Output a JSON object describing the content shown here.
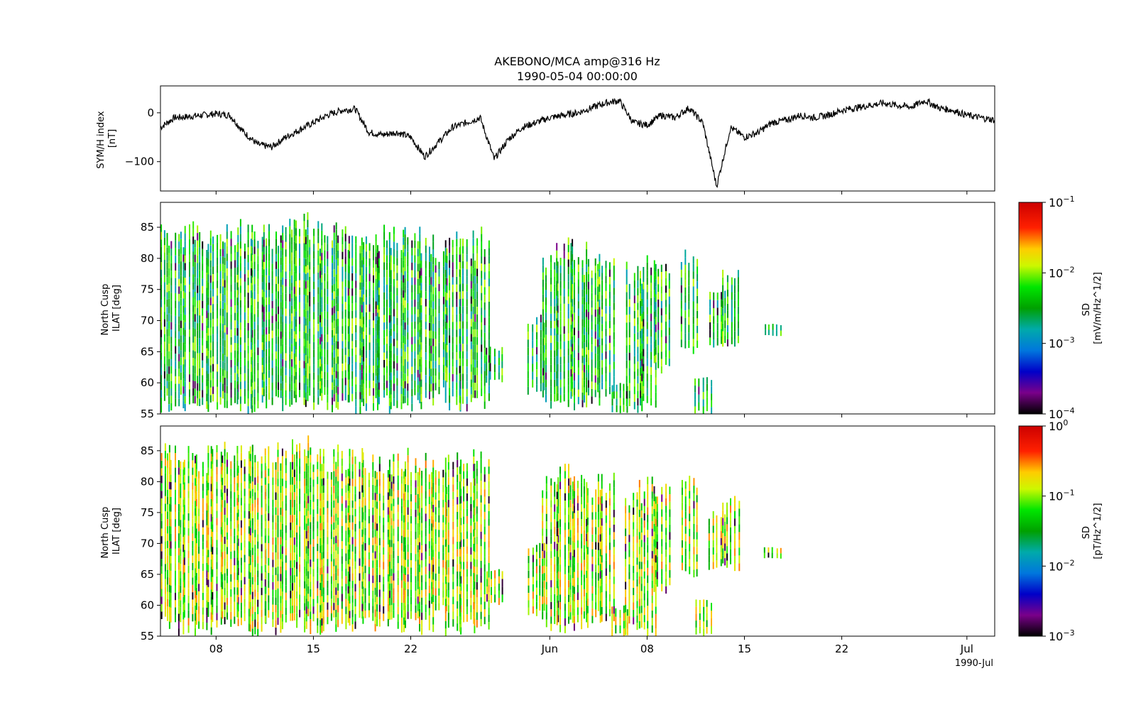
{
  "figure": {
    "title_line1": "AKEBONO/MCA amp@316 Hz",
    "title_line2": "1990-05-04 00:00:00",
    "x_corner_label": "1990-Jul",
    "x_ticks": [
      {
        "date": "1990-05-08",
        "label": "08"
      },
      {
        "date": "1990-05-15",
        "label": "15"
      },
      {
        "date": "1990-05-22",
        "label": "22"
      },
      {
        "date": "1990-06-01",
        "label": "Jun"
      },
      {
        "date": "1990-06-08",
        "label": "08"
      },
      {
        "date": "1990-06-15",
        "label": "15"
      },
      {
        "date": "1990-06-22",
        "label": "22"
      },
      {
        "date": "1990-07-01",
        "label": "Jul"
      }
    ]
  },
  "chart_data": [
    {
      "type": "line",
      "ylabel_line1": "SYM/H index",
      "ylabel_line2": "[nT]",
      "xlim": [
        "1990-05-04",
        "1990-07-03"
      ],
      "ylim": [
        -160,
        55
      ],
      "y_ticks": [
        0,
        -100
      ],
      "series": [
        {
          "color": "#000000",
          "x": [
            "1990-05-04",
            "1990-05-05",
            "1990-05-06",
            "1990-05-07",
            "1990-05-08",
            "1990-05-09",
            "1990-05-10",
            "1990-05-11",
            "1990-05-12",
            "1990-05-13",
            "1990-05-14",
            "1990-05-15",
            "1990-05-16",
            "1990-05-17",
            "1990-05-18",
            "1990-05-19",
            "1990-05-20",
            "1990-05-21",
            "1990-05-22",
            "1990-05-23",
            "1990-05-24",
            "1990-05-25",
            "1990-05-26",
            "1990-05-27",
            "1990-05-28",
            "1990-05-29",
            "1990-05-30",
            "1990-05-31",
            "1990-06-01",
            "1990-06-02",
            "1990-06-03",
            "1990-06-04",
            "1990-06-05",
            "1990-06-06",
            "1990-06-07",
            "1990-06-08",
            "1990-06-09",
            "1990-06-10",
            "1990-06-11",
            "1990-06-12",
            "1990-06-13",
            "1990-06-14",
            "1990-06-15",
            "1990-06-16",
            "1990-06-17",
            "1990-06-18",
            "1990-06-19",
            "1990-06-20",
            "1990-06-21",
            "1990-06-22",
            "1990-06-23",
            "1990-06-24",
            "1990-06-25",
            "1990-06-26",
            "1990-06-27",
            "1990-06-28",
            "1990-06-29",
            "1990-06-30",
            "1990-07-01",
            "1990-07-02",
            "1990-07-03"
          ],
          "y": [
            -30,
            -10,
            -8,
            -5,
            -2,
            -5,
            -40,
            -65,
            -70,
            -50,
            -35,
            -20,
            -5,
            5,
            8,
            -40,
            -45,
            -40,
            -50,
            -90,
            -60,
            -30,
            -20,
            -10,
            -95,
            -55,
            -30,
            -20,
            -10,
            -5,
            0,
            10,
            20,
            25,
            -20,
            -25,
            -5,
            -10,
            10,
            -20,
            -150,
            -30,
            -50,
            -40,
            -20,
            -15,
            -5,
            -10,
            -5,
            5,
            10,
            15,
            20,
            15,
            12,
            25,
            10,
            5,
            -5,
            -10,
            -15
          ]
        }
      ]
    },
    {
      "type": "heatmap",
      "ylabel_line1": "North Cusp",
      "ylabel_line2": "ILAT [deg]",
      "xlim": [
        "1990-05-04",
        "1990-07-03"
      ],
      "ylim": [
        55,
        89
      ],
      "y_ticks": [
        55,
        60,
        65,
        70,
        75,
        80,
        85
      ],
      "colorbar": {
        "label_line1": "SD",
        "label_line2": "[mV/m/Hz^1/2]",
        "scale": "log",
        "range": [
          0.0001,
          0.1
        ],
        "tick_exponents": [
          -1,
          -2,
          -3,
          -4
        ],
        "colormap": "nipy_spectral"
      },
      "dominant_color_log10": -2.4,
      "passes": [
        {
          "date": "1990-05-04",
          "lat_min": 55,
          "lat_max": 86.5
        },
        {
          "date": "1990-05-05",
          "lat_min": 55,
          "lat_max": 86
        },
        {
          "date": "1990-05-06",
          "lat_min": 55,
          "lat_max": 86.5
        },
        {
          "date": "1990-05-07",
          "lat_min": 55,
          "lat_max": 86
        },
        {
          "date": "1990-05-08",
          "lat_min": 55,
          "lat_max": 86.5
        },
        {
          "date": "1990-05-09",
          "lat_min": 55,
          "lat_max": 86
        },
        {
          "date": "1990-05-10",
          "lat_min": 55,
          "lat_max": 86.5
        },
        {
          "date": "1990-05-11",
          "lat_min": 55,
          "lat_max": 86.5
        },
        {
          "date": "1990-05-12",
          "lat_min": 55,
          "lat_max": 86
        },
        {
          "date": "1990-05-13",
          "lat_min": 55,
          "lat_max": 86.5
        },
        {
          "date": "1990-05-14",
          "lat_min": 55,
          "lat_max": 87.5
        },
        {
          "date": "1990-05-15",
          "lat_min": 55,
          "lat_max": 86.5
        },
        {
          "date": "1990-05-16",
          "lat_min": 55,
          "lat_max": 86
        },
        {
          "date": "1990-05-17",
          "lat_min": 55,
          "lat_max": 86
        },
        {
          "date": "1990-05-18",
          "lat_min": 55,
          "lat_max": 86
        },
        {
          "date": "1990-05-19",
          "lat_min": 55,
          "lat_max": 86
        },
        {
          "date": "1990-05-20",
          "lat_min": 55,
          "lat_max": 85.5
        },
        {
          "date": "1990-05-21",
          "lat_min": 55,
          "lat_max": 85.5
        },
        {
          "date": "1990-05-22",
          "lat_min": 55,
          "lat_max": 85.5
        },
        {
          "date": "1990-05-23",
          "lat_min": 55,
          "lat_max": 85
        },
        {
          "date": "1990-05-24",
          "lat_min": 58,
          "lat_max": 82
        },
        {
          "date": "1990-05-25",
          "lat_min": 55,
          "lat_max": 85.5
        },
        {
          "date": "1990-05-26",
          "lat_min": 55,
          "lat_max": 84
        },
        {
          "date": "1990-05-27",
          "lat_min": 55,
          "lat_max": 85.5
        },
        {
          "date": "1990-05-28",
          "lat_min": 60,
          "lat_max": 66
        },
        {
          "date": "1990-05-31",
          "lat_min": 58,
          "lat_max": 71
        },
        {
          "date": "1990-06-01",
          "lat_min": 55,
          "lat_max": 82.5
        },
        {
          "date": "1990-06-02",
          "lat_min": 55,
          "lat_max": 83.5
        },
        {
          "date": "1990-06-03",
          "lat_min": 55,
          "lat_max": 83
        },
        {
          "date": "1990-06-04",
          "lat_min": 56,
          "lat_max": 81
        },
        {
          "date": "1990-06-05",
          "lat_min": 57,
          "lat_max": 81.5
        },
        {
          "date": "1990-06-06",
          "lat_min": 55,
          "lat_max": 60
        },
        {
          "date": "1990-06-07",
          "lat_min": 55,
          "lat_max": 79.5
        },
        {
          "date": "1990-06-08",
          "lat_min": 55,
          "lat_max": 81.5
        },
        {
          "date": "1990-06-09",
          "lat_min": 61.5,
          "lat_max": 80
        },
        {
          "date": "1990-06-11",
          "lat_min": 64,
          "lat_max": 81.5
        },
        {
          "date": "1990-06-12",
          "lat_min": 55,
          "lat_max": 61
        },
        {
          "date": "1990-06-13",
          "lat_min": 65.5,
          "lat_max": 75.5
        },
        {
          "date": "1990-06-14",
          "lat_min": 65.5,
          "lat_max": 78.5
        },
        {
          "date": "1990-06-17",
          "lat_min": 67.5,
          "lat_max": 69.5
        }
      ]
    },
    {
      "type": "heatmap",
      "ylabel_line1": "North Cusp",
      "ylabel_line2": "ILAT [deg]",
      "xlim": [
        "1990-05-04",
        "1990-07-03"
      ],
      "ylim": [
        55,
        89
      ],
      "y_ticks": [
        55,
        60,
        65,
        70,
        75,
        80,
        85
      ],
      "colorbar": {
        "label_line1": "SD",
        "label_line2": "[pT/Hz^1/2]",
        "scale": "log",
        "range": [
          0.001,
          1
        ],
        "tick_exponents": [
          0,
          -1,
          -2,
          -3
        ],
        "colormap": "nipy_spectral"
      },
      "dominant_color_log10": -1.0,
      "passes": [
        {
          "date": "1990-05-04",
          "lat_min": 55,
          "lat_max": 86.5
        },
        {
          "date": "1990-05-05",
          "lat_min": 55,
          "lat_max": 86
        },
        {
          "date": "1990-05-06",
          "lat_min": 55,
          "lat_max": 86.5
        },
        {
          "date": "1990-05-07",
          "lat_min": 55,
          "lat_max": 86
        },
        {
          "date": "1990-05-08",
          "lat_min": 55,
          "lat_max": 86.5
        },
        {
          "date": "1990-05-09",
          "lat_min": 55,
          "lat_max": 86
        },
        {
          "date": "1990-05-10",
          "lat_min": 55,
          "lat_max": 86.5
        },
        {
          "date": "1990-05-11",
          "lat_min": 55,
          "lat_max": 86.5
        },
        {
          "date": "1990-05-12",
          "lat_min": 55,
          "lat_max": 86
        },
        {
          "date": "1990-05-13",
          "lat_min": 55,
          "lat_max": 86.5
        },
        {
          "date": "1990-05-14",
          "lat_min": 55,
          "lat_max": 87.5
        },
        {
          "date": "1990-05-15",
          "lat_min": 55,
          "lat_max": 86.5
        },
        {
          "date": "1990-05-16",
          "lat_min": 55,
          "lat_max": 86
        },
        {
          "date": "1990-05-17",
          "lat_min": 55,
          "lat_max": 86
        },
        {
          "date": "1990-05-18",
          "lat_min": 55,
          "lat_max": 86
        },
        {
          "date": "1990-05-19",
          "lat_min": 55,
          "lat_max": 86
        },
        {
          "date": "1990-05-20",
          "lat_min": 55,
          "lat_max": 85.5
        },
        {
          "date": "1990-05-21",
          "lat_min": 55,
          "lat_max": 85.5
        },
        {
          "date": "1990-05-22",
          "lat_min": 55,
          "lat_max": 85.5
        },
        {
          "date": "1990-05-23",
          "lat_min": 55,
          "lat_max": 85
        },
        {
          "date": "1990-05-24",
          "lat_min": 58,
          "lat_max": 82
        },
        {
          "date": "1990-05-25",
          "lat_min": 55,
          "lat_max": 85.5
        },
        {
          "date": "1990-05-26",
          "lat_min": 55,
          "lat_max": 84
        },
        {
          "date": "1990-05-27",
          "lat_min": 55,
          "lat_max": 85.5
        },
        {
          "date": "1990-05-28",
          "lat_min": 60,
          "lat_max": 66
        },
        {
          "date": "1990-05-31",
          "lat_min": 58,
          "lat_max": 71
        },
        {
          "date": "1990-06-01",
          "lat_min": 55,
          "lat_max": 82.5
        },
        {
          "date": "1990-06-02",
          "lat_min": 55,
          "lat_max": 83.5
        },
        {
          "date": "1990-06-03",
          "lat_min": 55,
          "lat_max": 83
        },
        {
          "date": "1990-06-04",
          "lat_min": 56,
          "lat_max": 81
        },
        {
          "date": "1990-06-05",
          "lat_min": 57,
          "lat_max": 81.5
        },
        {
          "date": "1990-06-06",
          "lat_min": 55,
          "lat_max": 60
        },
        {
          "date": "1990-06-07",
          "lat_min": 55,
          "lat_max": 79.5
        },
        {
          "date": "1990-06-08",
          "lat_min": 55,
          "lat_max": 81.5
        },
        {
          "date": "1990-06-09",
          "lat_min": 61.5,
          "lat_max": 80
        },
        {
          "date": "1990-06-11",
          "lat_min": 64,
          "lat_max": 81.5
        },
        {
          "date": "1990-06-12",
          "lat_min": 55,
          "lat_max": 61
        },
        {
          "date": "1990-06-13",
          "lat_min": 65.5,
          "lat_max": 75.5
        },
        {
          "date": "1990-06-14",
          "lat_min": 65.5,
          "lat_max": 78.5
        },
        {
          "date": "1990-06-17",
          "lat_min": 67.5,
          "lat_max": 69.5
        }
      ]
    }
  ]
}
